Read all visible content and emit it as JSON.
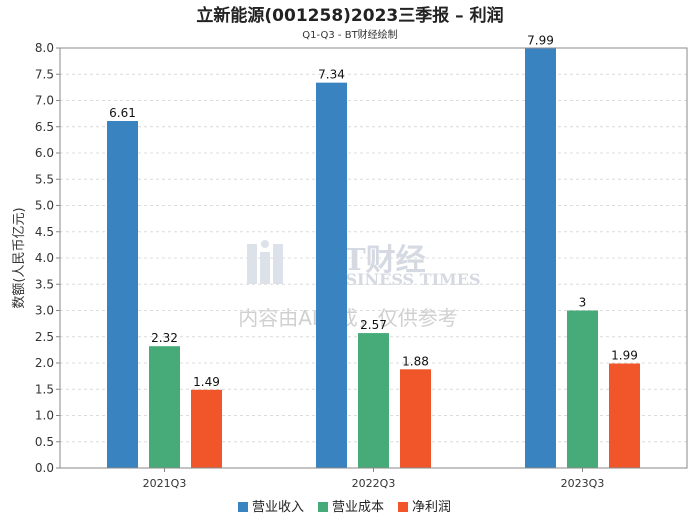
{
  "chart_data": {
    "type": "bar",
    "title": "立新能源(001258)2023三季报 – 利润",
    "subtitle": "Q1-Q3 - BT财经绘制",
    "ylabel": "数额(人民币亿元)",
    "xlabel": "",
    "categories": [
      "2021Q3",
      "2022Q3",
      "2023Q3"
    ],
    "series": [
      {
        "name": "营业收入",
        "color": "#3a83c1",
        "values": [
          6.61,
          7.34,
          7.99
        ],
        "labels": [
          "6.61",
          "7.34",
          "7.99"
        ]
      },
      {
        "name": "营业成本",
        "color": "#47ab79",
        "values": [
          2.32,
          2.57,
          3.0
        ],
        "labels": [
          "2.32",
          "2.57",
          "3"
        ]
      },
      {
        "name": "净利润",
        "color": "#f0562a",
        "values": [
          1.49,
          1.88,
          1.99
        ],
        "labels": [
          "1.49",
          "1.88",
          "1.99"
        ]
      }
    ],
    "ylim": [
      0,
      8.0
    ],
    "yticks": [
      "0.0",
      "0.5",
      "1.0",
      "1.5",
      "2.0",
      "2.5",
      "3.0",
      "3.5",
      "4.0",
      "4.5",
      "5.0",
      "5.5",
      "6.0",
      "6.5",
      "7.0",
      "7.5",
      "8.0"
    ],
    "grid": true,
    "legend_position": "bottom-center"
  },
  "watermark": {
    "brand": "BT财经",
    "brand_en": "BUSINESS TIMES",
    "notice": "内容由AI生成，仅供参考"
  }
}
